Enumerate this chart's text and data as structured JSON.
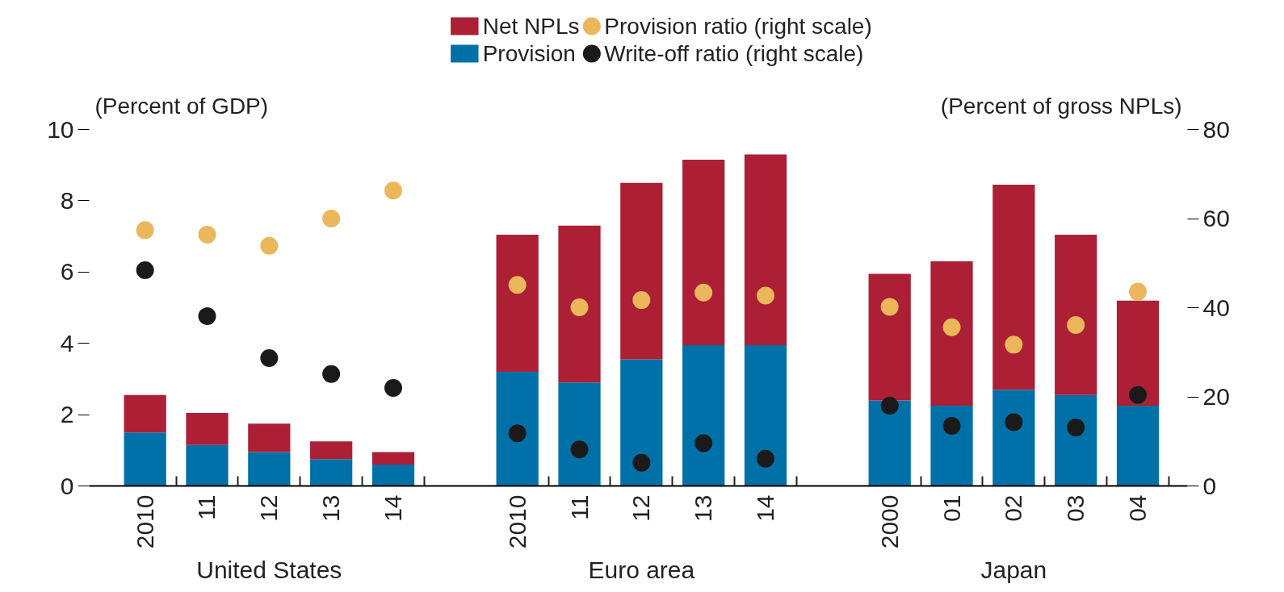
{
  "chart_data": {
    "type": "bar",
    "stacked": true,
    "categories": [
      "2010",
      "11",
      "12",
      "13",
      "14",
      null,
      "2010",
      "11",
      "12",
      "13",
      "14",
      null,
      "2000",
      "01",
      "02",
      "03",
      "04"
    ],
    "series": [
      {
        "name": "Provision",
        "color": "#0071a8",
        "values": [
          1.5,
          1.15,
          0.95,
          0.75,
          0.6,
          null,
          3.2,
          2.9,
          3.55,
          3.95,
          3.95,
          null,
          2.4,
          2.25,
          2.7,
          2.55,
          2.25
        ]
      },
      {
        "name": "Net NPLs",
        "color": "#ac1f35",
        "values": [
          1.05,
          0.9,
          0.8,
          0.5,
          0.35,
          null,
          3.85,
          4.4,
          4.95,
          5.2,
          5.35,
          null,
          3.55,
          4.05,
          5.75,
          4.5,
          2.95
        ]
      },
      {
        "name": "Provision ratio (right scale)",
        "type": "scatter",
        "axis": "y2",
        "color": "#ebb75a",
        "values": [
          57.4,
          56.4,
          53.9,
          60,
          66.3,
          null,
          45.1,
          40.1,
          41.7,
          43.4,
          42.7,
          null,
          40.2,
          35.6,
          31.7,
          36.1,
          43.6
        ]
      },
      {
        "name": "Write-off ratio (right scale)",
        "type": "scatter",
        "axis": "y2",
        "color": "#1a1a1a",
        "values": [
          48.4,
          38.1,
          28.7,
          25.1,
          22,
          null,
          11.8,
          8.2,
          5.2,
          9.6,
          6.1,
          null,
          18,
          13.5,
          14.3,
          13.1,
          20.4
        ]
      }
    ],
    "ylabel": "(Percent of GDP)",
    "y2label": "(Percent of gross NPLs)",
    "ylim": [
      0,
      10
    ],
    "yticks": [
      0,
      2,
      4,
      6,
      8,
      10
    ],
    "y2lim": [
      0,
      80
    ],
    "y2ticks": [
      0,
      20,
      40,
      60,
      80
    ],
    "annotations": [
      "United States",
      "Euro area",
      "Japan"
    ],
    "legend": "top",
    "grid": false,
    "marker": "circle"
  }
}
